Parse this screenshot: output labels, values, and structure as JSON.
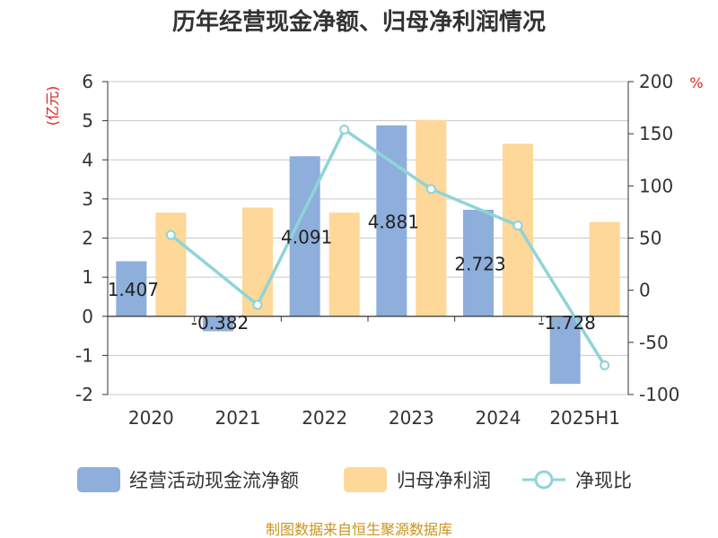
{
  "chart_data": {
    "type": "bar",
    "title": "历年经营现金净额、归母净利润情况",
    "categories": [
      "2020",
      "2021",
      "2022",
      "2023",
      "2024",
      "2025H1"
    ],
    "series": [
      {
        "name": "经营活动现金流净额",
        "type": "bar",
        "axis": "left",
        "color": "#8eaedb",
        "values": [
          1.407,
          -0.382,
          4.091,
          4.881,
          2.723,
          -1.728
        ],
        "labels": [
          "1.407",
          "-0.382",
          "4.091",
          "4.881",
          "2.723",
          "-1.728"
        ]
      },
      {
        "name": "归母净利润",
        "type": "bar",
        "axis": "left",
        "color": "#fdd898",
        "values": [
          2.65,
          2.78,
          2.65,
          5.02,
          4.41,
          2.41
        ]
      },
      {
        "name": "净现比",
        "type": "line",
        "axis": "right",
        "color": "#8fd4d8",
        "values": [
          53,
          -14,
          154,
          97,
          62,
          -72
        ]
      }
    ],
    "y_left": {
      "unit_label": "(亿元)",
      "ylim": [
        -2,
        6
      ],
      "ticks": [
        "-2",
        "-1",
        "0",
        "1",
        "2",
        "3",
        "4",
        "5",
        "6"
      ]
    },
    "y_right": {
      "unit_label": "%",
      "ylim": [
        -100,
        200
      ],
      "ticks": [
        "-100",
        "-50",
        "0",
        "50",
        "100",
        "150",
        "200"
      ]
    },
    "grid": true,
    "legend_position": "bottom"
  },
  "source_note": "制图数据来自恒生聚源数据库"
}
